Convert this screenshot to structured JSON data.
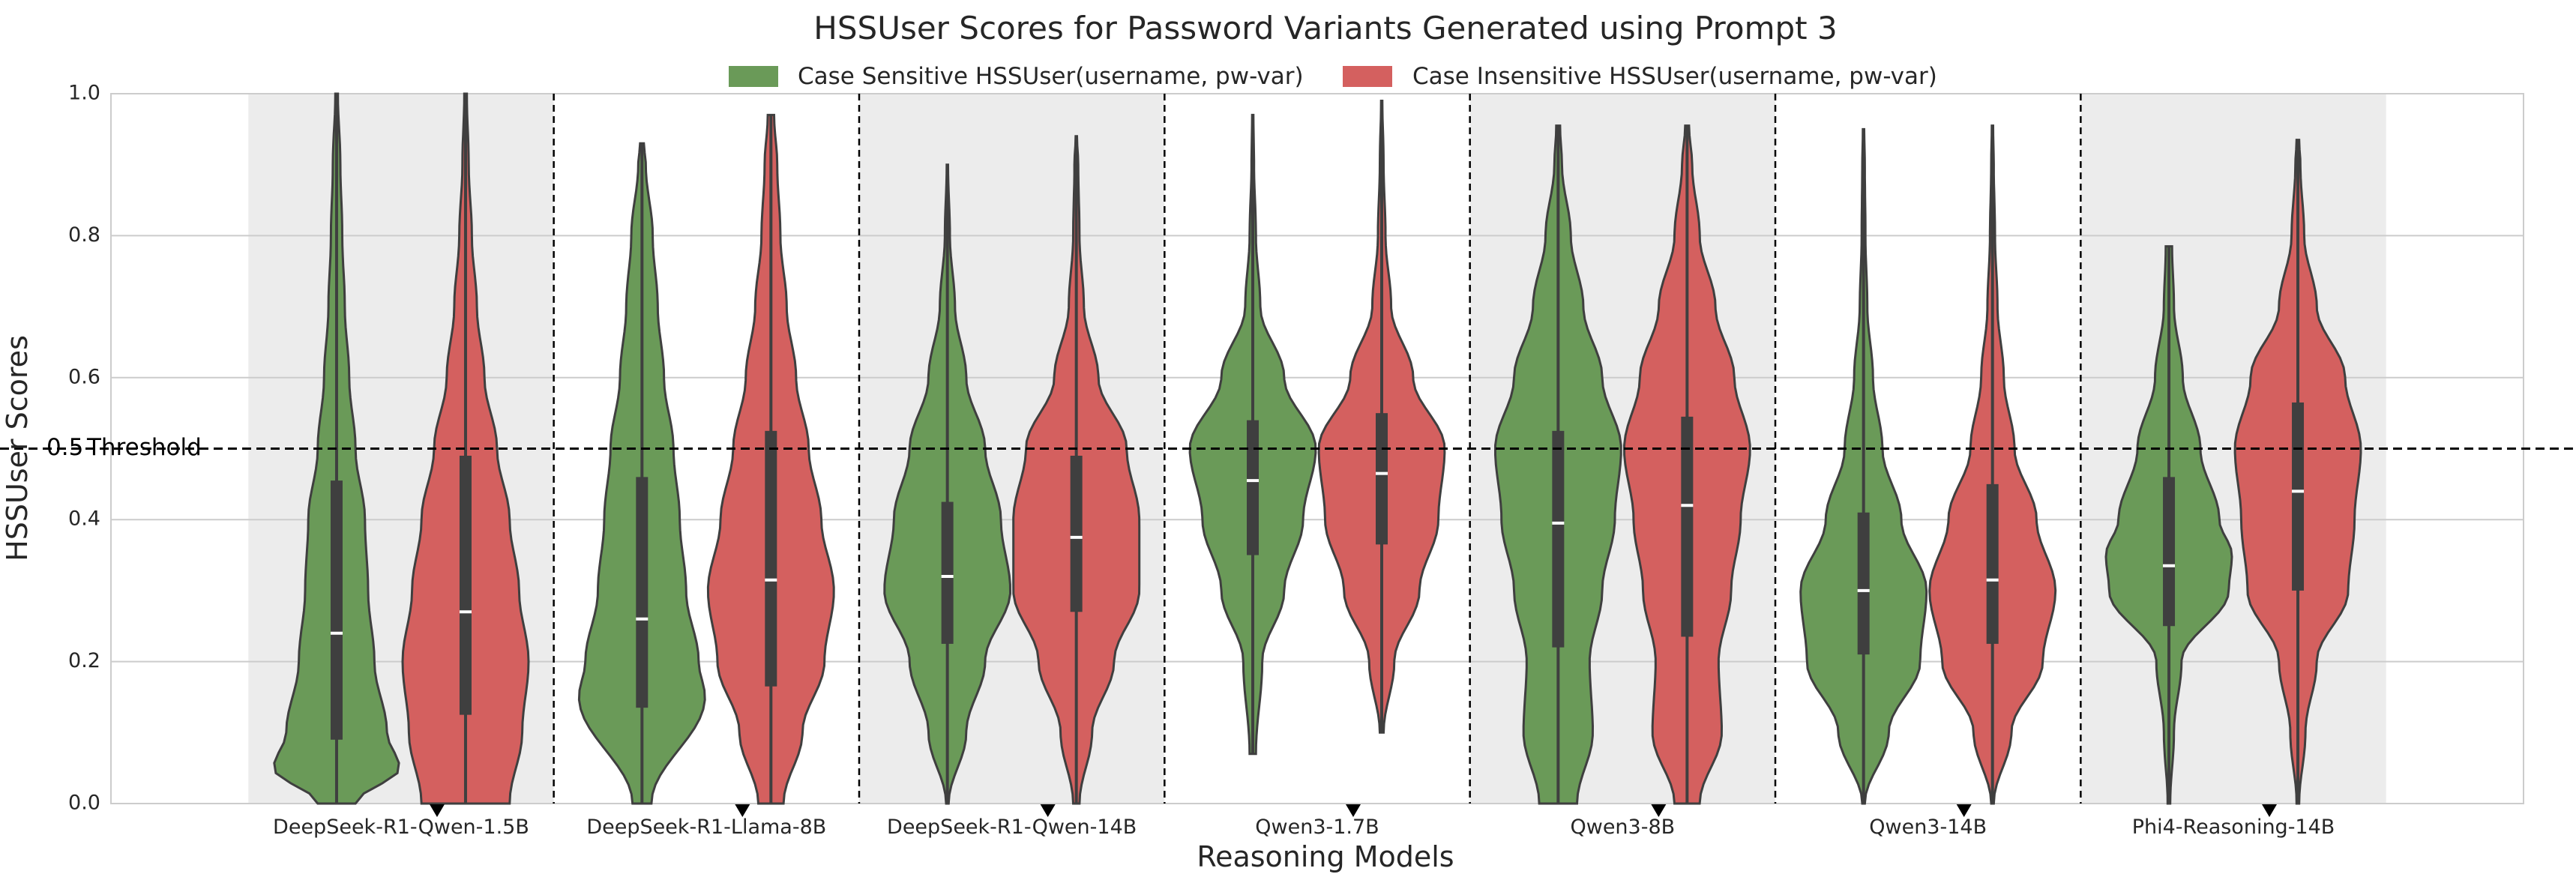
{
  "chart_data": {
    "type": "violin",
    "title": "HSSUser Scores for Password Variants Generated using Prompt 3",
    "xlabel": "Reasoning Models",
    "ylabel": "HSSUser Scores",
    "ylim": [
      0.0,
      1.0
    ],
    "yticks": [
      "0.0",
      "0.2",
      "0.4",
      "0.6",
      "0.8",
      "1.0"
    ],
    "grid": true,
    "legend_position": "top-center",
    "categories": [
      "DeepSeek-R1-Qwen-1.5B",
      "DeepSeek-R1-Llama-8B",
      "DeepSeek-R1-Qwen-14B",
      "Qwen3-1.7B",
      "Qwen3-8B",
      "Qwen3-14B",
      "Phi4-Reasoning-14B"
    ],
    "shaded_categories": [
      0,
      2,
      4,
      6
    ],
    "threshold": {
      "value": 0.5,
      "tick_label": "0.5",
      "label": "Threshold"
    },
    "series": [
      {
        "name": "Case Sensitive HSSUser(username, pw-var)",
        "color": "#6a9a58",
        "stats": [
          {
            "min": 0.0,
            "q1": 0.09,
            "median": 0.24,
            "q3": 0.455,
            "max": 1.0,
            "profile": [
              [
                0.0,
                0.3
              ],
              [
                0.05,
                1.0
              ],
              [
                0.1,
                0.8
              ],
              [
                0.2,
                0.6
              ],
              [
                0.3,
                0.5
              ],
              [
                0.4,
                0.45
              ],
              [
                0.5,
                0.3
              ],
              [
                0.6,
                0.2
              ],
              [
                0.7,
                0.13
              ],
              [
                0.8,
                0.09
              ],
              [
                0.9,
                0.06
              ],
              [
                1.0,
                0.02
              ]
            ]
          },
          {
            "min": 0.0,
            "q1": 0.135,
            "median": 0.26,
            "q3": 0.46,
            "max": 0.93,
            "profile": [
              [
                0.0,
                0.15
              ],
              [
                0.15,
                1.0
              ],
              [
                0.2,
                0.9
              ],
              [
                0.3,
                0.7
              ],
              [
                0.4,
                0.6
              ],
              [
                0.5,
                0.5
              ],
              [
                0.6,
                0.35
              ],
              [
                0.7,
                0.25
              ],
              [
                0.8,
                0.17
              ],
              [
                0.9,
                0.06
              ],
              [
                0.93,
                0.03
              ]
            ]
          },
          {
            "min": 0.0,
            "q1": 0.225,
            "median": 0.32,
            "q3": 0.425,
            "max": 0.9,
            "profile": [
              [
                0.0,
                0.02
              ],
              [
                0.1,
                0.3
              ],
              [
                0.2,
                0.6
              ],
              [
                0.3,
                1.0
              ],
              [
                0.4,
                0.85
              ],
              [
                0.5,
                0.6
              ],
              [
                0.6,
                0.3
              ],
              [
                0.7,
                0.12
              ],
              [
                0.8,
                0.04
              ],
              [
                0.9,
                0.01
              ]
            ]
          },
          {
            "min": 0.07,
            "q1": 0.35,
            "median": 0.455,
            "q3": 0.54,
            "max": 0.97,
            "profile": [
              [
                0.07,
                0.05
              ],
              [
                0.2,
                0.15
              ],
              [
                0.3,
                0.5
              ],
              [
                0.4,
                0.8
              ],
              [
                0.5,
                1.0
              ],
              [
                0.6,
                0.5
              ],
              [
                0.7,
                0.12
              ],
              [
                0.8,
                0.05
              ],
              [
                0.9,
                0.02
              ],
              [
                0.97,
                0.01
              ]
            ]
          },
          {
            "min": 0.0,
            "q1": 0.22,
            "median": 0.395,
            "q3": 0.525,
            "max": 0.955,
            "profile": [
              [
                0.0,
                0.3
              ],
              [
                0.1,
                0.55
              ],
              [
                0.2,
                0.5
              ],
              [
                0.3,
                0.7
              ],
              [
                0.4,
                0.9
              ],
              [
                0.5,
                1.0
              ],
              [
                0.6,
                0.7
              ],
              [
                0.7,
                0.4
              ],
              [
                0.8,
                0.2
              ],
              [
                0.9,
                0.06
              ],
              [
                0.955,
                0.03
              ]
            ]
          },
          {
            "min": 0.0,
            "q1": 0.21,
            "median": 0.3,
            "q3": 0.41,
            "max": 0.95,
            "profile": [
              [
                0.0,
                0.02
              ],
              [
                0.1,
                0.4
              ],
              [
                0.2,
                0.9
              ],
              [
                0.3,
                1.0
              ],
              [
                0.4,
                0.6
              ],
              [
                0.5,
                0.3
              ],
              [
                0.6,
                0.15
              ],
              [
                0.7,
                0.06
              ],
              [
                0.8,
                0.03
              ],
              [
                0.9,
                0.02
              ],
              [
                0.95,
                0.01
              ]
            ]
          },
          {
            "min": 0.0,
            "q1": 0.25,
            "median": 0.335,
            "q3": 0.46,
            "max": 0.785,
            "profile": [
              [
                0.0,
                0.02
              ],
              [
                0.1,
                0.08
              ],
              [
                0.2,
                0.2
              ],
              [
                0.3,
                0.95
              ],
              [
                0.35,
                1.0
              ],
              [
                0.4,
                0.8
              ],
              [
                0.5,
                0.5
              ],
              [
                0.6,
                0.22
              ],
              [
                0.7,
                0.08
              ],
              [
                0.785,
                0.05
              ]
            ]
          }
        ]
      },
      {
        "name": "Case Insensitive HSSUser(username, pw-var)",
        "color": "#d4605f",
        "stats": [
          {
            "min": 0.0,
            "q1": 0.125,
            "median": 0.27,
            "q3": 0.49,
            "max": 1.0,
            "profile": [
              [
                0.0,
                0.7
              ],
              [
                0.1,
                0.9
              ],
              [
                0.2,
                1.0
              ],
              [
                0.3,
                0.85
              ],
              [
                0.4,
                0.7
              ],
              [
                0.5,
                0.5
              ],
              [
                0.6,
                0.3
              ],
              [
                0.7,
                0.18
              ],
              [
                0.8,
                0.1
              ],
              [
                0.9,
                0.05
              ],
              [
                1.0,
                0.02
              ]
            ]
          },
          {
            "min": 0.0,
            "q1": 0.165,
            "median": 0.315,
            "q3": 0.525,
            "max": 0.97,
            "profile": [
              [
                0.0,
                0.2
              ],
              [
                0.1,
                0.5
              ],
              [
                0.2,
                0.85
              ],
              [
                0.3,
                1.0
              ],
              [
                0.4,
                0.8
              ],
              [
                0.5,
                0.6
              ],
              [
                0.6,
                0.4
              ],
              [
                0.7,
                0.25
              ],
              [
                0.8,
                0.15
              ],
              [
                0.9,
                0.1
              ],
              [
                0.97,
                0.05
              ]
            ]
          },
          {
            "min": 0.0,
            "q1": 0.27,
            "median": 0.375,
            "q3": 0.49,
            "max": 0.94,
            "profile": [
              [
                0.0,
                0.05
              ],
              [
                0.1,
                0.25
              ],
              [
                0.2,
                0.6
              ],
              [
                0.3,
                1.0
              ],
              [
                0.4,
                1.0
              ],
              [
                0.5,
                0.8
              ],
              [
                0.6,
                0.35
              ],
              [
                0.7,
                0.12
              ],
              [
                0.8,
                0.05
              ],
              [
                0.9,
                0.03
              ],
              [
                0.94,
                0.01
              ]
            ]
          },
          {
            "min": 0.1,
            "q1": 0.365,
            "median": 0.465,
            "q3": 0.55,
            "max": 0.99,
            "profile": [
              [
                0.1,
                0.03
              ],
              [
                0.2,
                0.2
              ],
              [
                0.3,
                0.6
              ],
              [
                0.4,
                0.9
              ],
              [
                0.5,
                1.0
              ],
              [
                0.6,
                0.5
              ],
              [
                0.7,
                0.15
              ],
              [
                0.8,
                0.06
              ],
              [
                0.9,
                0.03
              ],
              [
                0.99,
                0.01
              ]
            ]
          },
          {
            "min": 0.0,
            "q1": 0.235,
            "median": 0.42,
            "q3": 0.545,
            "max": 0.955,
            "profile": [
              [
                0.0,
                0.2
              ],
              [
                0.1,
                0.55
              ],
              [
                0.2,
                0.5
              ],
              [
                0.3,
                0.7
              ],
              [
                0.4,
                0.85
              ],
              [
                0.5,
                1.0
              ],
              [
                0.6,
                0.75
              ],
              [
                0.7,
                0.45
              ],
              [
                0.8,
                0.2
              ],
              [
                0.9,
                0.08
              ],
              [
                0.955,
                0.03
              ]
            ]
          },
          {
            "min": 0.0,
            "q1": 0.225,
            "median": 0.315,
            "q3": 0.45,
            "max": 0.955,
            "profile": [
              [
                0.0,
                0.02
              ],
              [
                0.1,
                0.3
              ],
              [
                0.2,
                0.8
              ],
              [
                0.3,
                1.0
              ],
              [
                0.4,
                0.7
              ],
              [
                0.5,
                0.35
              ],
              [
                0.6,
                0.18
              ],
              [
                0.7,
                0.08
              ],
              [
                0.8,
                0.04
              ],
              [
                0.9,
                0.02
              ],
              [
                0.955,
                0.01
              ]
            ]
          },
          {
            "min": 0.0,
            "q1": 0.3,
            "median": 0.44,
            "q3": 0.565,
            "max": 0.935,
            "profile": [
              [
                0.0,
                0.02
              ],
              [
                0.1,
                0.12
              ],
              [
                0.2,
                0.3
              ],
              [
                0.3,
                0.8
              ],
              [
                0.4,
                0.9
              ],
              [
                0.5,
                1.0
              ],
              [
                0.6,
                0.75
              ],
              [
                0.7,
                0.3
              ],
              [
                0.8,
                0.1
              ],
              [
                0.9,
                0.04
              ],
              [
                0.935,
                0.02
              ]
            ]
          }
        ]
      }
    ]
  }
}
